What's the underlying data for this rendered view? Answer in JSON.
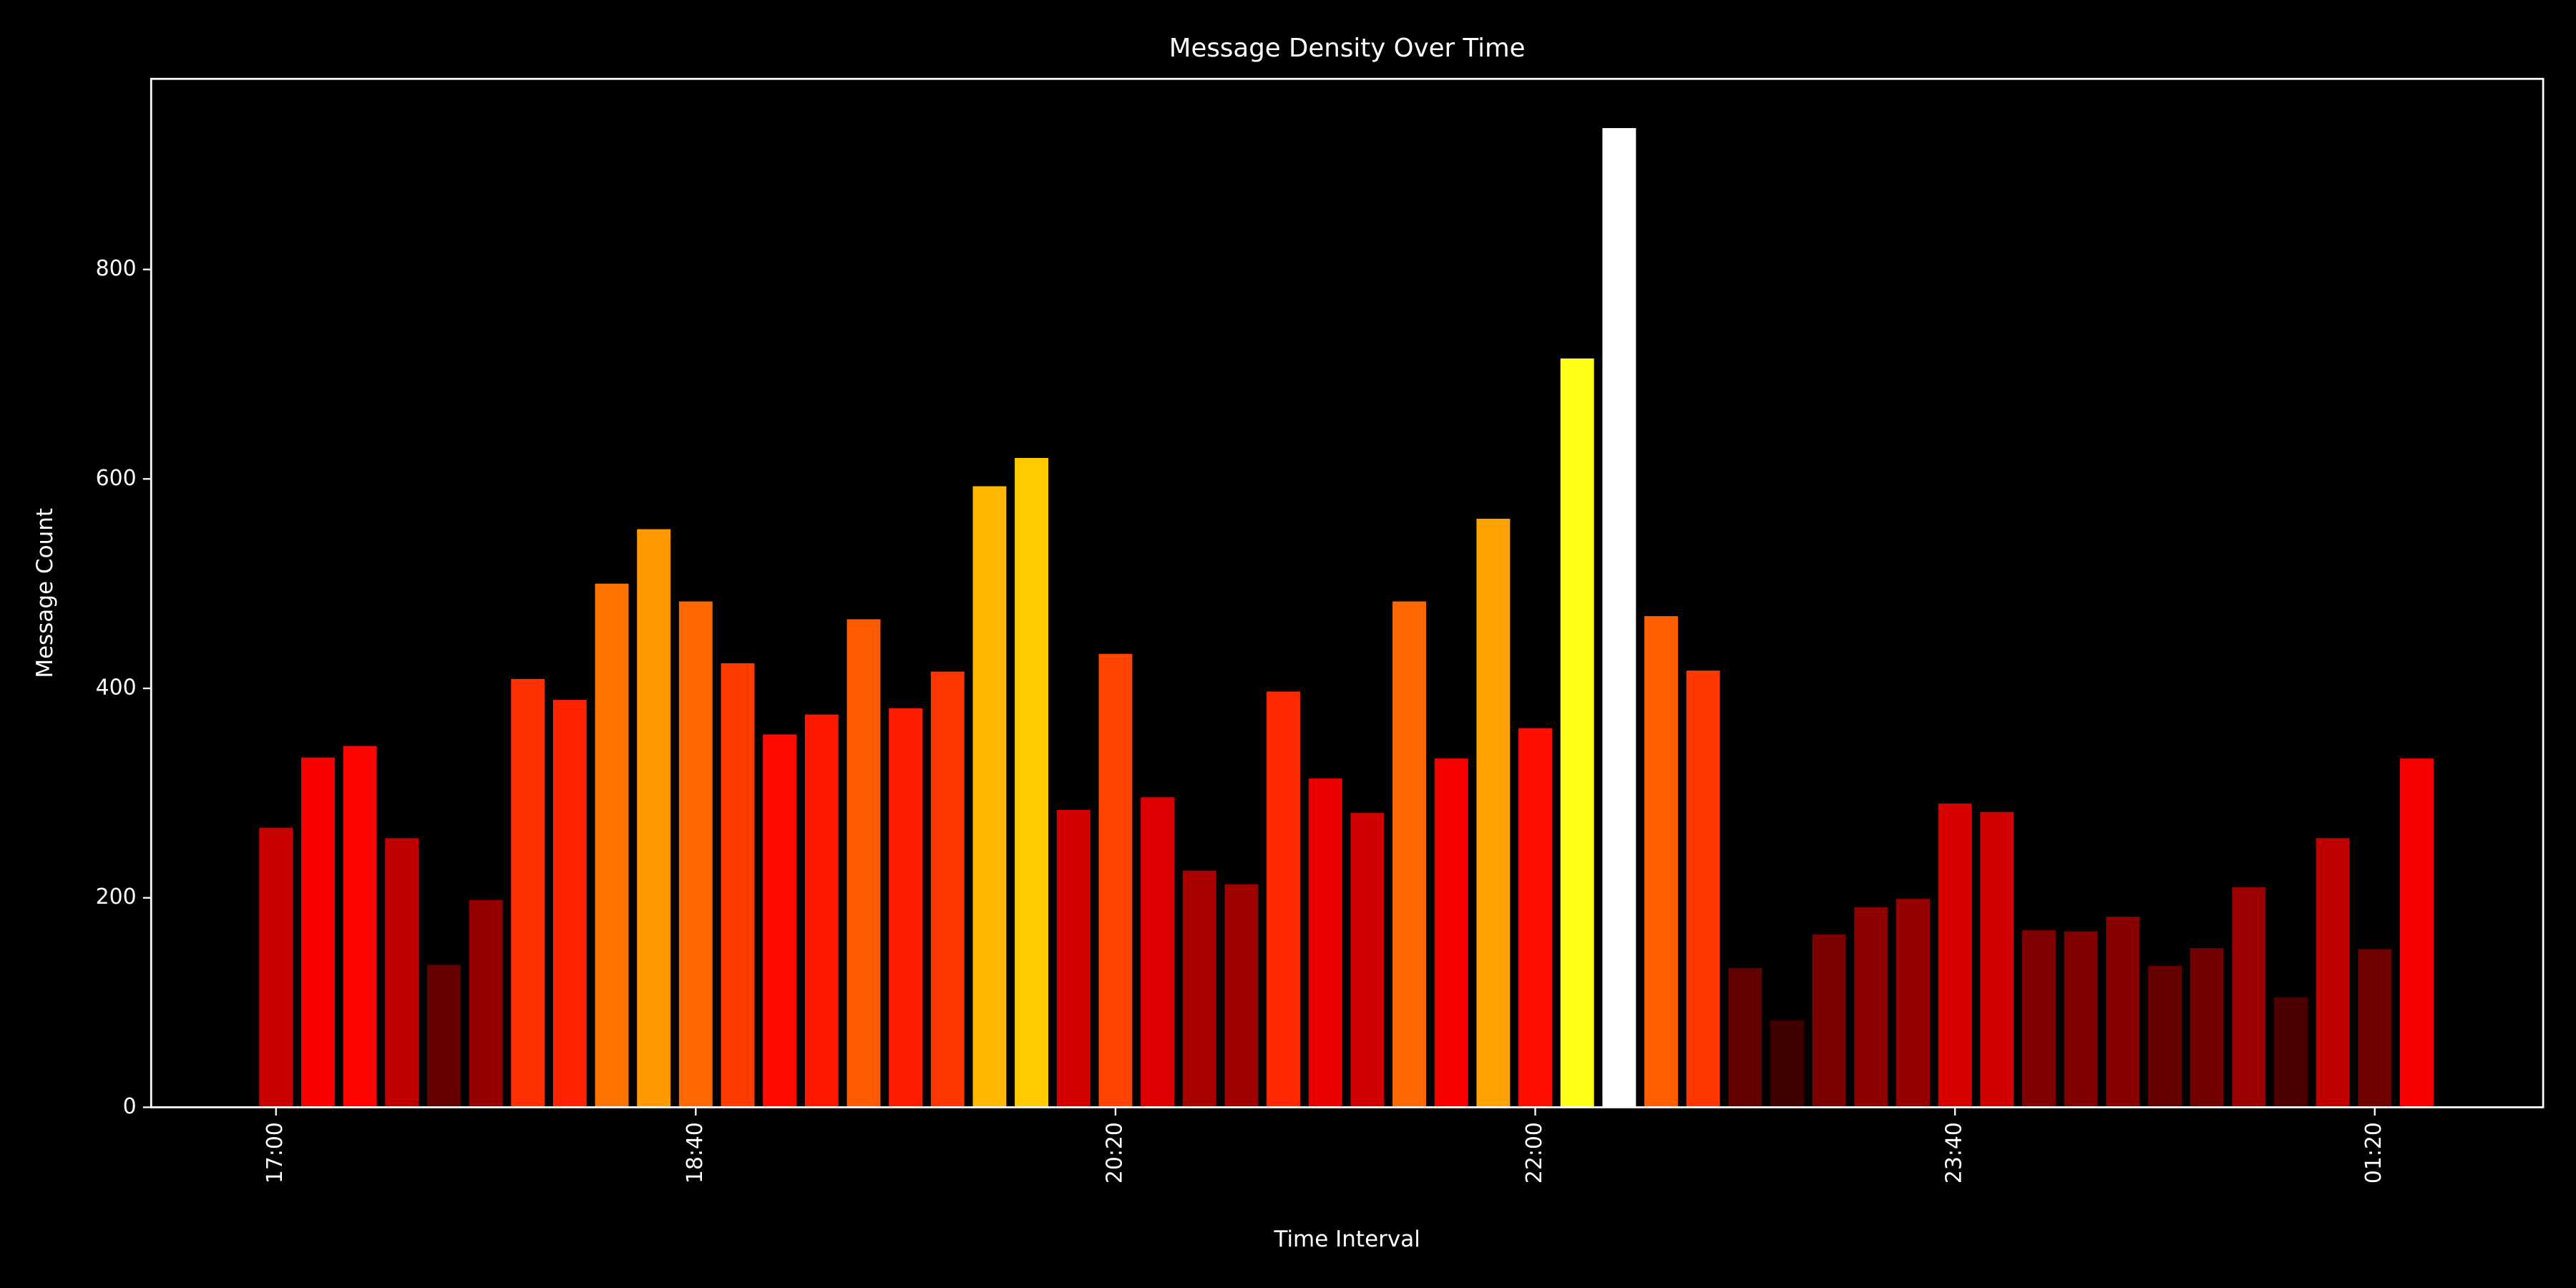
{
  "chart_data": {
    "type": "bar",
    "title": "Message Density Over Time",
    "x_label": "Time Interval",
    "y_label": "Message Count",
    "categories": [
      "17:00",
      null,
      null,
      null,
      null,
      null,
      null,
      null,
      null,
      null,
      "18:40",
      null,
      null,
      null,
      null,
      null,
      null,
      null,
      null,
      null,
      "20:20",
      null,
      null,
      null,
      null,
      null,
      null,
      null,
      null,
      null,
      "22:00",
      null,
      null,
      null,
      null,
      null,
      null,
      null,
      null,
      null,
      "23:40",
      null,
      null,
      null,
      null,
      null,
      null,
      null,
      null,
      null,
      "01:20",
      null
    ],
    "values": [
      267,
      334,
      345,
      257,
      136,
      198,
      409,
      389,
      500,
      552,
      483,
      424,
      356,
      375,
      466,
      381,
      416,
      593,
      620,
      284,
      433,
      296,
      226,
      213,
      397,
      314,
      281,
      483,
      333,
      562,
      362,
      715,
      935,
      469,
      417,
      133,
      83,
      165,
      191,
      199,
      290,
      282,
      169,
      168,
      182,
      135,
      152,
      210,
      105,
      257,
      151,
      333
    ],
    "colormap": "hot",
    "ylim": [
      0,
      982
    ],
    "yticks": [
      0,
      200,
      400,
      600,
      800
    ],
    "grid": false
  }
}
